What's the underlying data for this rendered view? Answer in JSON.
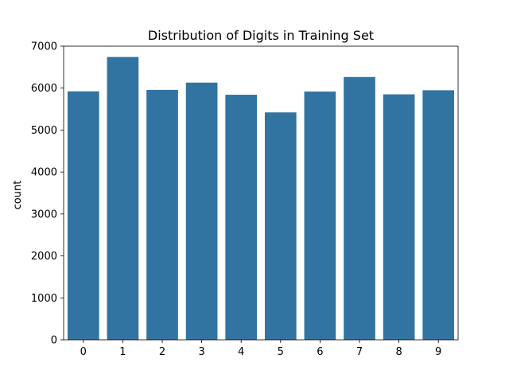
{
  "chart_data": {
    "type": "bar",
    "title": "Distribution of Digits in Training Set",
    "xlabel": "",
    "ylabel": "count",
    "categories": [
      "0",
      "1",
      "2",
      "3",
      "4",
      "5",
      "6",
      "7",
      "8",
      "9"
    ],
    "values": [
      5923,
      6742,
      5958,
      6131,
      5842,
      5421,
      5918,
      6265,
      5851,
      5949
    ],
    "ylim": [
      0,
      7000
    ],
    "yticks": [
      0,
      1000,
      2000,
      3000,
      4000,
      5000,
      6000,
      7000
    ],
    "bar_color": "#3274a1",
    "grid": false,
    "legend": "none"
  }
}
